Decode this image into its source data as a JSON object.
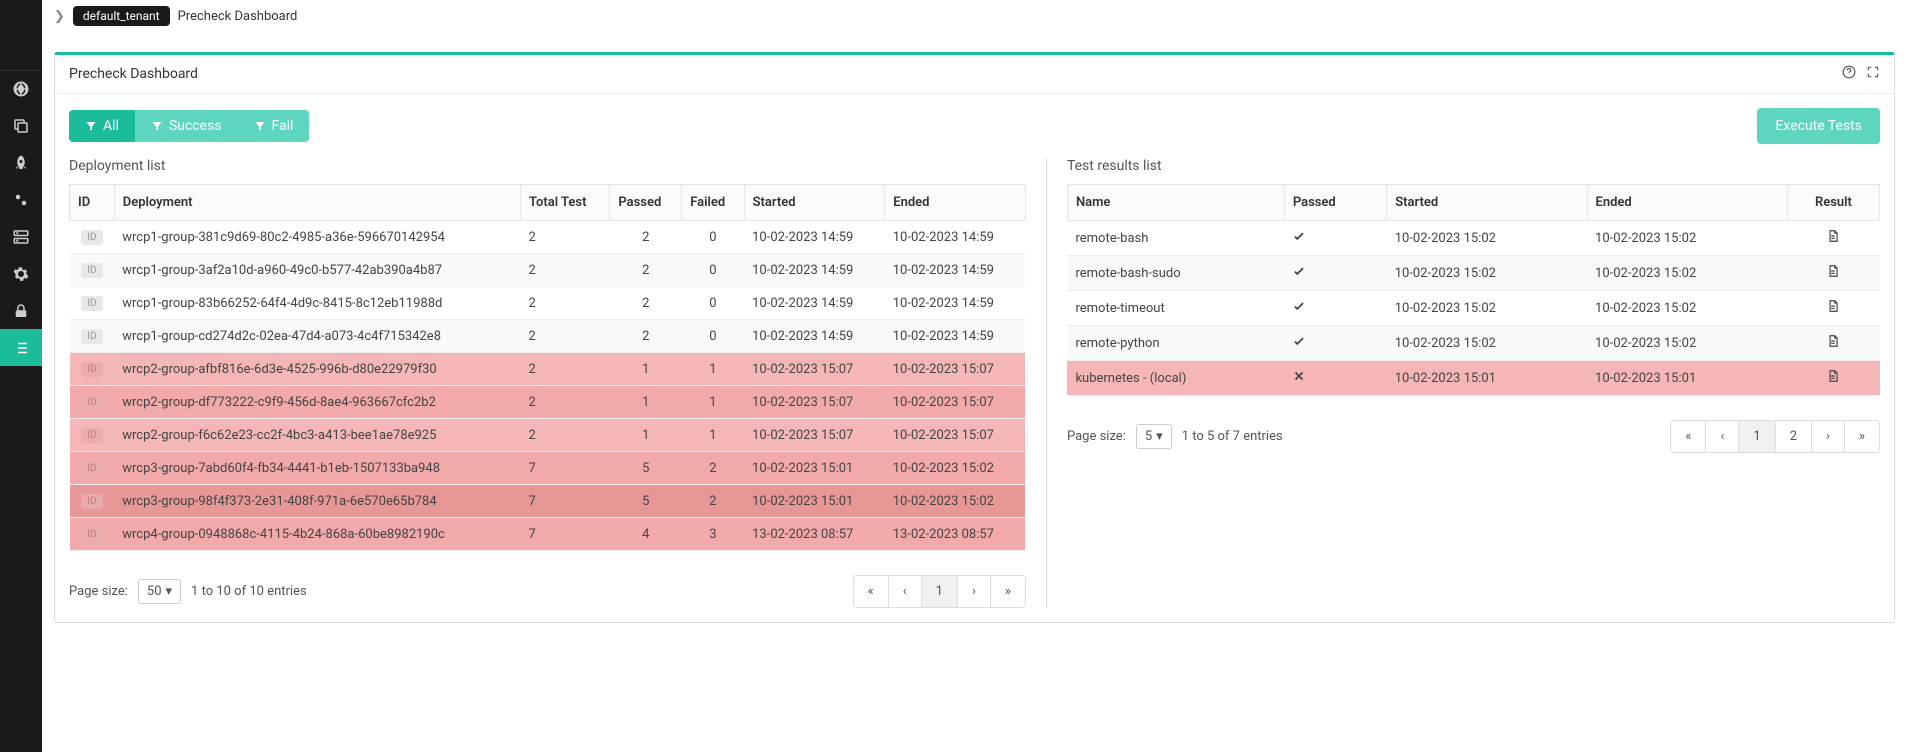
{
  "breadcrumb": {
    "tenant": "default_tenant",
    "page": "Precheck Dashboard"
  },
  "panel": {
    "title": "Precheck Dashboard"
  },
  "filters": {
    "all": "All",
    "success": "Success",
    "fail": "Fail"
  },
  "execute_btn": "Execute Tests",
  "deployment": {
    "title": "Deployment list",
    "headers": {
      "id": "ID",
      "deployment": "Deployment",
      "total": "Total Test",
      "passed": "Passed",
      "failed": "Failed",
      "started": "Started",
      "ended": "Ended"
    },
    "rows": [
      {
        "id": "ID",
        "name": "wrcp1-group-381c9d69-80c2-4985-a36e-596670142954",
        "total": "2",
        "passed": "2",
        "failed": "0",
        "started": "10-02-2023 14:59",
        "ended": "10-02-2023 14:59",
        "fail": false
      },
      {
        "id": "ID",
        "name": "wrcp1-group-3af2a10d-a960-49c0-b577-42ab390a4b87",
        "total": "2",
        "passed": "2",
        "failed": "0",
        "started": "10-02-2023 14:59",
        "ended": "10-02-2023 14:59",
        "fail": false
      },
      {
        "id": "ID",
        "name": "wrcp1-group-83b66252-64f4-4d9c-8415-8c12eb11988d",
        "total": "2",
        "passed": "2",
        "failed": "0",
        "started": "10-02-2023 14:59",
        "ended": "10-02-2023 14:59",
        "fail": false
      },
      {
        "id": "ID",
        "name": "wrcp1-group-cd274d2c-02ea-47d4-a073-4c4f715342e8",
        "total": "2",
        "passed": "2",
        "failed": "0",
        "started": "10-02-2023 14:59",
        "ended": "10-02-2023 14:59",
        "fail": false
      },
      {
        "id": "ID",
        "name": "wrcp2-group-afbf816e-6d3e-4525-996b-d80e22979f30",
        "total": "2",
        "passed": "1",
        "failed": "1",
        "started": "10-02-2023 15:07",
        "ended": "10-02-2023 15:07",
        "fail": true
      },
      {
        "id": "ID",
        "name": "wrcp2-group-df773222-c9f9-456d-8ae4-963667cfc2b2",
        "total": "2",
        "passed": "1",
        "failed": "1",
        "started": "10-02-2023 15:07",
        "ended": "10-02-2023 15:07",
        "fail": true
      },
      {
        "id": "ID",
        "name": "wrcp2-group-f6c62e23-cc2f-4bc3-a413-bee1ae78e925",
        "total": "2",
        "passed": "1",
        "failed": "1",
        "started": "10-02-2023 15:07",
        "ended": "10-02-2023 15:07",
        "fail": true
      },
      {
        "id": "ID",
        "name": "wrcp3-group-7abd60f4-fb34-4441-b1eb-1507133ba948",
        "total": "7",
        "passed": "5",
        "failed": "2",
        "started": "10-02-2023 15:01",
        "ended": "10-02-2023 15:02",
        "fail": true
      },
      {
        "id": "ID",
        "name": "wrcp3-group-98f4f373-2e31-408f-971a-6e570e65b784",
        "total": "7",
        "passed": "5",
        "failed": "2",
        "started": "10-02-2023 15:01",
        "ended": "10-02-2023 15:02",
        "fail": true,
        "selected": true
      },
      {
        "id": "ID",
        "name": "wrcp4-group-0948868c-4115-4b24-868a-60be8982190c",
        "total": "7",
        "passed": "4",
        "failed": "3",
        "started": "13-02-2023 08:57",
        "ended": "13-02-2023 08:57",
        "fail": true
      }
    ],
    "pager": {
      "label": "Page size:",
      "size": "50",
      "info": "1 to 10 of 10 entries",
      "current": "1"
    }
  },
  "results": {
    "title": "Test results list",
    "headers": {
      "name": "Name",
      "passed": "Passed",
      "started": "Started",
      "ended": "Ended",
      "result": "Result"
    },
    "rows": [
      {
        "name": "remote-bash",
        "passed": true,
        "started": "10-02-2023 15:02",
        "ended": "10-02-2023 15:02"
      },
      {
        "name": "remote-bash-sudo",
        "passed": true,
        "started": "10-02-2023 15:02",
        "ended": "10-02-2023 15:02"
      },
      {
        "name": "remote-timeout",
        "passed": true,
        "started": "10-02-2023 15:02",
        "ended": "10-02-2023 15:02"
      },
      {
        "name": "remote-python",
        "passed": true,
        "started": "10-02-2023 15:02",
        "ended": "10-02-2023 15:02"
      },
      {
        "name": "kubernetes - (local)",
        "passed": false,
        "started": "10-02-2023 15:01",
        "ended": "10-02-2023 15:01"
      }
    ],
    "pager": {
      "label": "Page size:",
      "size": "5",
      "info": "1 to 5 of 7 entries",
      "pages": [
        "1",
        "2"
      ],
      "current": "1"
    }
  }
}
